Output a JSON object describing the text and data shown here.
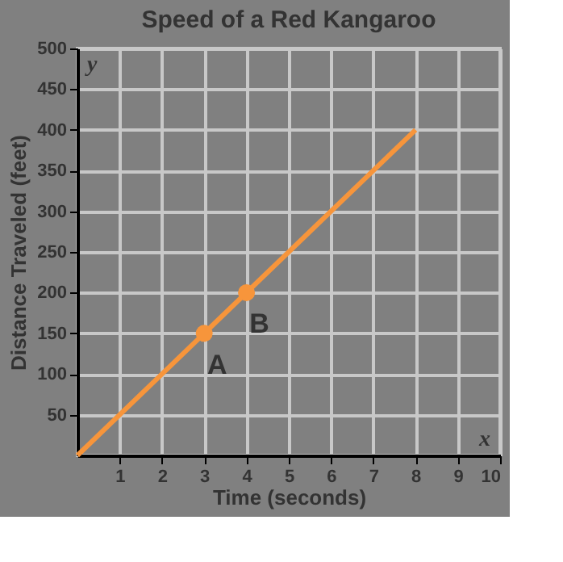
{
  "chart_data": {
    "type": "line",
    "title": "Speed of a Red Kangaroo",
    "xlabel": "Time (seconds)",
    "ylabel": "Distance Traveled (feet)",
    "series": [
      {
        "x": [
          0,
          8
        ],
        "values": [
          0,
          400
        ],
        "color": "#f7953b",
        "marker": "none"
      },
      {
        "type": "scatter",
        "x": [
          3,
          4
        ],
        "values": [
          150,
          200
        ],
        "color": "#f7953b",
        "marker": "circle"
      }
    ],
    "annotations": [
      {
        "text": "A",
        "x": 3,
        "y": 150
      },
      {
        "text": "B",
        "x": 4,
        "y": 200
      },
      "y",
      "x"
    ],
    "xlim": [
      0,
      10
    ],
    "xticks": [
      1,
      2,
      3,
      4,
      5,
      6,
      7,
      8,
      9,
      10
    ],
    "ylim": [
      0,
      500
    ],
    "yticks": [
      50,
      100,
      150,
      200,
      250,
      300,
      350,
      400,
      450,
      500
    ],
    "grid": true
  }
}
